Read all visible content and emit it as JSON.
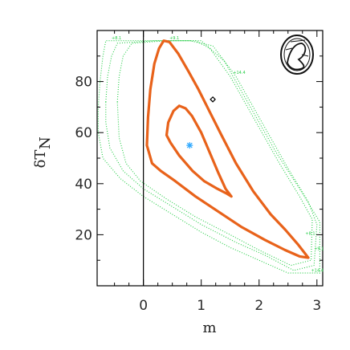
{
  "chart_data": {
    "type": "contour",
    "xlabel": "m",
    "ylabel": "δT",
    "ylabel_subscript": "N",
    "xlim": [
      -0.8,
      3.1
    ],
    "ylim": [
      0,
      100
    ],
    "xticks": [
      0,
      1,
      2,
      3
    ],
    "yticks": [
      20,
      40,
      60,
      80
    ],
    "xtick_labels": [
      "0",
      "1",
      "2",
      "3"
    ],
    "ytick_labels": [
      "20",
      "40",
      "60",
      "80"
    ],
    "best_fit": {
      "x": 0.8,
      "y": 55
    },
    "reference_point": {
      "x": 1.2,
      "y": 73
    },
    "vertical_line_x": 0,
    "colors": {
      "contours": "#e8621a",
      "dotted": "#22cc44",
      "best_fit": "#33aaff",
      "frame": "#000000"
    },
    "inner_contour": [
      [
        0.4,
        59
      ],
      [
        0.43,
        64
      ],
      [
        0.52,
        68.5
      ],
      [
        0.62,
        70.5
      ],
      [
        0.73,
        69.5
      ],
      [
        0.84,
        66.5
      ],
      [
        1.0,
        60
      ],
      [
        1.15,
        52
      ],
      [
        1.3,
        44
      ],
      [
        1.42,
        38
      ],
      [
        1.52,
        35
      ],
      [
        1.45,
        36
      ],
      [
        1.28,
        38
      ],
      [
        1.05,
        41
      ],
      [
        0.85,
        45
      ],
      [
        0.62,
        51
      ],
      [
        0.47,
        56
      ],
      [
        0.4,
        59
      ]
    ],
    "outer_contour": [
      [
        0.06,
        55
      ],
      [
        0.08,
        66
      ],
      [
        0.12,
        77
      ],
      [
        0.19,
        87
      ],
      [
        0.27,
        93
      ],
      [
        0.35,
        96
      ],
      [
        0.45,
        95.5
      ],
      [
        0.6,
        91
      ],
      [
        0.78,
        84
      ],
      [
        0.95,
        77
      ],
      [
        1.15,
        68
      ],
      [
        1.35,
        59
      ],
      [
        1.6,
        48
      ],
      [
        1.9,
        37
      ],
      [
        2.2,
        28
      ],
      [
        2.45,
        22
      ],
      [
        2.68,
        16
      ],
      [
        2.85,
        11
      ],
      [
        2.7,
        11.5
      ],
      [
        2.45,
        14
      ],
      [
        2.1,
        18
      ],
      [
        1.7,
        23
      ],
      [
        1.3,
        29
      ],
      [
        0.9,
        35
      ],
      [
        0.55,
        41
      ],
      [
        0.3,
        45
      ],
      [
        0.15,
        48
      ],
      [
        0.06,
        55
      ]
    ],
    "dotted_contours": [
      [
        [
          -0.78,
          70
        ],
        [
          -0.75,
          80
        ],
        [
          -0.7,
          90
        ],
        [
          -0.65,
          96
        ],
        [
          -0.5,
          96
        ],
        [
          -0.35,
          96
        ],
        [
          0.1,
          96
        ],
        [
          0.6,
          96
        ],
        [
          1.0,
          96
        ],
        [
          1.4,
          88
        ],
        [
          1.8,
          72
        ],
        [
          2.3,
          52
        ],
        [
          2.7,
          38
        ],
        [
          3.05,
          25
        ],
        [
          3.05,
          5
        ],
        [
          2.5,
          5
        ],
        [
          2.0,
          10
        ],
        [
          1.5,
          15
        ],
        [
          1.0,
          21
        ],
        [
          0.5,
          28
        ],
        [
          0.0,
          35
        ],
        [
          -0.4,
          42
        ],
        [
          -0.7,
          50
        ],
        [
          -0.78,
          60
        ],
        [
          -0.78,
          70
        ]
      ],
      [
        [
          -0.65,
          72
        ],
        [
          -0.62,
          82
        ],
        [
          -0.55,
          90
        ],
        [
          -0.45,
          95
        ],
        [
          0.2,
          96
        ],
        [
          0.8,
          96
        ],
        [
          1.2,
          94
        ],
        [
          1.6,
          82
        ],
        [
          2.1,
          62
        ],
        [
          2.5,
          46
        ],
        [
          2.85,
          33
        ],
        [
          3.0,
          24
        ],
        [
          2.95,
          8
        ],
        [
          2.6,
          6
        ],
        [
          2.1,
          12
        ],
        [
          1.6,
          17
        ],
        [
          1.0,
          24
        ],
        [
          0.5,
          31
        ],
        [
          0.0,
          38
        ],
        [
          -0.35,
          45
        ],
        [
          -0.58,
          54
        ],
        [
          -0.65,
          64
        ],
        [
          -0.65,
          72
        ]
      ],
      [
        [
          -0.45,
          72
        ],
        [
          -0.42,
          82
        ],
        [
          -0.35,
          90
        ],
        [
          -0.2,
          95
        ],
        [
          0.4,
          96
        ],
        [
          0.9,
          96
        ],
        [
          1.15,
          93
        ],
        [
          1.5,
          82
        ],
        [
          1.95,
          64
        ],
        [
          2.35,
          48
        ],
        [
          2.7,
          35
        ],
        [
          2.92,
          26
        ],
        [
          2.9,
          10
        ],
        [
          2.55,
          8
        ],
        [
          2.0,
          14
        ],
        [
          1.5,
          20
        ],
        [
          0.9,
          27
        ],
        [
          0.4,
          34
        ],
        [
          -0.05,
          41
        ],
        [
          -0.3,
          48
        ],
        [
          -0.42,
          58
        ],
        [
          -0.45,
          72
        ]
      ]
    ],
    "contour_labels": [
      "+8.1",
      "+9.1",
      "+14.4",
      "+8.1",
      "+9.1",
      "+14.4"
    ]
  },
  "logo": {
    "name": "seal-logo"
  }
}
